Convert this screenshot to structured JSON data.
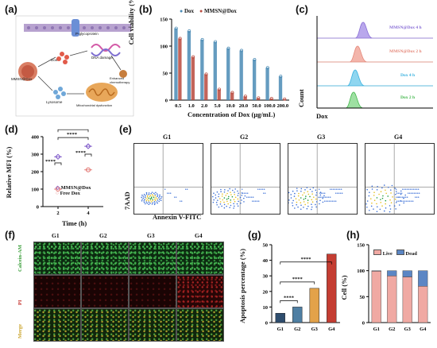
{
  "panels": {
    "a": "(a)",
    "b": "(b)",
    "c": "(c)",
    "d": "(d)",
    "e": "(e)",
    "f": "(f)",
    "g": "(g)",
    "h": "(h)"
  },
  "schematic": {
    "labels": [
      "P-glycoprotein",
      "Dox",
      "DNA damage",
      "MMSN@Dox",
      "Lysosome",
      "Magnetosome-mediated chemotherapy",
      "Mitochondrial dysfunction",
      "Enhanced chemotherapy"
    ]
  },
  "panel_b": {
    "ylabel": "Cell viability (%)",
    "xlabel": "Concentration of Dox (μg/mL)",
    "legend": [
      "Dox",
      "MMSN@Dox"
    ],
    "colors": [
      "#4a8bb5",
      "#b9493d"
    ]
  },
  "panel_c": {
    "ylabel": "Count",
    "xlabel": "Dox",
    "tracks": [
      {
        "label": "MMSN@Dox 4 h",
        "color": "#8a6fd6",
        "fill": "#b9a7ec"
      },
      {
        "label": "MMSN@Dox 2 h",
        "color": "#e58a7c",
        "fill": "#f3b5ab"
      },
      {
        "label": "Dox 4 h",
        "color": "#3db3e0",
        "fill": "#8fd6f0"
      },
      {
        "label": "Dox 2 h",
        "color": "#45b84e",
        "fill": "#9ee0a2"
      }
    ]
  },
  "panel_d": {
    "ylabel": "Relative MFI (%)",
    "xlabel": "Time (h)",
    "legend": [
      "MMSN@Dox",
      "Free Dox"
    ],
    "sig": [
      "****",
      "****",
      "***",
      "****"
    ]
  },
  "panel_e": {
    "groups": [
      "G1",
      "G2",
      "G3",
      "G4"
    ],
    "ylabel": "7AAD",
    "xlabel": "Annexin V-FITC"
  },
  "panel_f": {
    "groups": [
      "G1",
      "G2",
      "G3",
      "G4"
    ],
    "rows": [
      "Calcein-AM",
      "PI",
      "Merge"
    ]
  },
  "panel_g": {
    "ylabel": "Apoptosis percentage (%)",
    "sig": [
      "****",
      "****",
      "****"
    ]
  },
  "panel_h": {
    "ylabel": "Cell (%)",
    "legend": [
      "Live",
      "Dead"
    ]
  },
  "chart_data": [
    {
      "id": "b",
      "type": "bar",
      "categories": [
        "0.5",
        "1.0",
        "2.0",
        "5.0",
        "10.0",
        "20.0",
        "50.0",
        "100.0",
        "200.0"
      ],
      "series": [
        {
          "name": "Dox",
          "values": [
            133,
            128,
            112,
            108,
            96,
            92,
            75,
            60,
            44
          ]
        },
        {
          "name": "MMSN@Dox",
          "values": [
            114,
            80,
            48,
            20,
            14,
            7,
            4,
            3,
            2
          ]
        }
      ],
      "ylim": [
        0,
        150
      ],
      "yticks": [
        0,
        50,
        100,
        150
      ],
      "xlabel": "Concentration of Dox (μg/mL)",
      "ylabel": "Cell viability (%)"
    },
    {
      "id": "d",
      "type": "scatter",
      "x": [
        2,
        4
      ],
      "series": [
        {
          "name": "MMSN@Dox",
          "values": [
            285,
            345
          ]
        },
        {
          "name": "Free Dox",
          "values": [
            100,
            210
          ]
        }
      ],
      "xlim": [
        1,
        5
      ],
      "ylim": [
        0,
        400
      ],
      "yticks": [
        0,
        100,
        200,
        300,
        400
      ],
      "xticks": [
        2,
        4
      ],
      "xlabel": "Time (h)",
      "ylabel": "Relative MFI (%)"
    },
    {
      "id": "g",
      "type": "bar",
      "categories": [
        "G1",
        "G2",
        "G3",
        "G4"
      ],
      "values": [
        6,
        10,
        22,
        44
      ],
      "colors": [
        "#2e4d6e",
        "#4f7fa3",
        "#e3a24a",
        "#c43d32"
      ],
      "ylim": [
        0,
        50
      ],
      "yticks": [
        0,
        10,
        20,
        30,
        40,
        50
      ],
      "ylabel": "Apoptosis percentage (%)"
    },
    {
      "id": "h",
      "type": "bar",
      "stacked": true,
      "categories": [
        "G1",
        "G2",
        "G3",
        "G4"
      ],
      "series": [
        {
          "name": "Live",
          "values": [
            99,
            90,
            88,
            70
          ],
          "color": "#f0a9a3"
        },
        {
          "name": "Dead",
          "values": [
            1,
            10,
            12,
            30
          ],
          "color": "#5b86c4"
        }
      ],
      "ylim": [
        0,
        150
      ],
      "yticks": [
        0,
        50,
        100,
        150
      ],
      "ylabel": "Cell (%)"
    }
  ]
}
